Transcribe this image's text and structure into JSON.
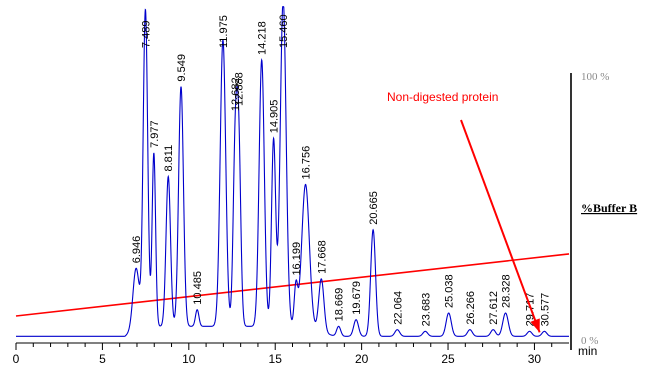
{
  "chart_data": {
    "type": "line",
    "x_axis": {
      "range": [
        0,
        32
      ],
      "ticks": [
        0,
        5,
        10,
        15,
        20,
        25,
        30
      ],
      "tick_labels": [
        "0",
        "5",
        "10",
        "15",
        "20",
        "25",
        "30"
      ],
      "unit": "min"
    },
    "y_right": {
      "label": "%Buffer B",
      "range": [
        0,
        100
      ],
      "top_label": "100 %",
      "bottom_label": "0 %"
    },
    "chromatogram": {
      "color": "#0000cc",
      "baseline": 2,
      "peaks": [
        {
          "rt": 6.946,
          "label": "6.946",
          "height": 18,
          "width": 0.18
        },
        {
          "rt": 7.489,
          "label": "7.489",
          "height": 95,
          "width": 0.13
        },
        {
          "rt": 7.977,
          "label": "7.977",
          "height": 52,
          "width": 0.1
        },
        {
          "rt": 8.811,
          "label": "8.811",
          "height": 45,
          "width": 0.13
        },
        {
          "rt": 9.549,
          "label": "9.549",
          "height": 72,
          "width": 0.14
        },
        {
          "rt": 10.485,
          "label": "10.485",
          "height": 5,
          "width": 0.1
        },
        {
          "rt": 11.975,
          "label": "11.975",
          "height": 86,
          "width": 0.16
        },
        {
          "rt": 12.682,
          "label": "12.682",
          "height": 51,
          "width": 0.12
        },
        {
          "rt": 12.888,
          "label": "12.888",
          "height": 53,
          "width": 0.12
        },
        {
          "rt": 14.218,
          "label": "14.218",
          "height": 80,
          "width": 0.15
        },
        {
          "rt": 14.905,
          "label": "14.905",
          "height": 56,
          "width": 0.12
        },
        {
          "rt": 15.46,
          "label": "15.460",
          "height": 98,
          "width": 0.17
        },
        {
          "rt": 16.199,
          "label": "16.199",
          "height": 12,
          "width": 0.1
        },
        {
          "rt": 16.756,
          "label": "16.756",
          "height": 43,
          "width": 0.22
        },
        {
          "rt": 17.668,
          "label": "17.668",
          "height": 16,
          "width": 0.15
        },
        {
          "rt": 18.669,
          "label": "18.669",
          "height": 3,
          "width": 0.12
        },
        {
          "rt": 19.679,
          "label": "19.679",
          "height": 5,
          "width": 0.14
        },
        {
          "rt": 20.665,
          "label": "20.665",
          "height": 32,
          "width": 0.14
        },
        {
          "rt": 22.064,
          "label": "22.064",
          "height": 2,
          "width": 0.14
        },
        {
          "rt": 23.683,
          "label": "23.683",
          "height": 1.5,
          "width": 0.14
        },
        {
          "rt": 25.038,
          "label": "25.038",
          "height": 7,
          "width": 0.15
        },
        {
          "rt": 26.266,
          "label": "26.266",
          "height": 2,
          "width": 0.14
        },
        {
          "rt": 27.612,
          "label": "27.612",
          "height": 2,
          "width": 0.14
        },
        {
          "rt": 28.328,
          "label": "28.328",
          "height": 7,
          "width": 0.16
        },
        {
          "rt": 29.717,
          "label": "29.717",
          "height": 1.5,
          "width": 0.14
        },
        {
          "rt": 30.577,
          "label": "30.577",
          "height": 1.5,
          "width": 0.14
        }
      ]
    },
    "gradient": {
      "color": "#ff0000",
      "points": [
        [
          0,
          10
        ],
        [
          32,
          33
        ]
      ]
    },
    "annotation": {
      "text": "Non-digested protein",
      "color": "#ff0000",
      "arrow_target": [
        30.3,
        2
      ]
    }
  }
}
